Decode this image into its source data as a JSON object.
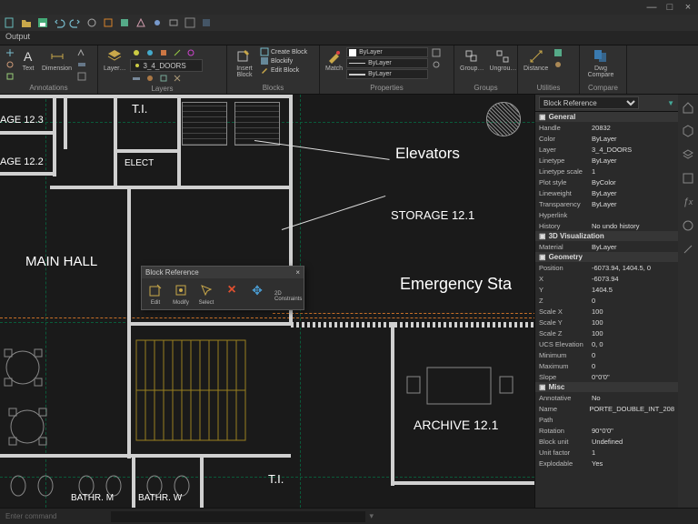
{
  "window": {
    "minimize": "—",
    "maximize": "□",
    "close": "×"
  },
  "output_tab": "Output",
  "ribbon": {
    "annotations": {
      "label": "Annotations",
      "text": "Text",
      "dimension": "Dimension"
    },
    "layers": {
      "label": "Layers",
      "layer_btn": "Layer…",
      "combo": "3_4_DOORS"
    },
    "blocks": {
      "label": "Blocks",
      "insert": "Insert Block",
      "create": "Create Block",
      "blockify": "Blockify",
      "edit": "Edit Block"
    },
    "properties": {
      "label": "Properties",
      "match": "Match",
      "bylayer1": "ByLayer",
      "bylayer2": "ByLayer",
      "bylayer3": "ByLayer"
    },
    "groups": {
      "label": "Groups",
      "group": "Group…",
      "ungroup": "Ungrou…"
    },
    "utilities": {
      "label": "Utilities",
      "distance": "Distance"
    },
    "compare": {
      "label": "Compare",
      "dwg": "Dwg Compare"
    }
  },
  "rooms": {
    "ti1": "T.I.",
    "elect": "ELECT",
    "age123": "AGE 12.3",
    "age122": "AGE 12.2",
    "mainhall": "MAIN HALL",
    "elevators": "Elevators",
    "storage": "STORAGE 12.1",
    "emergency": "Emergency Sta",
    "archive": "ARCHIVE 12.1",
    "bathm": "BATHR. M",
    "bathw": "BATHR. W",
    "ti2": "T.I."
  },
  "context": {
    "title": "Block Reference",
    "edit": "Edit",
    "modify": "Modify",
    "select": "Select",
    "delete_icon": "×",
    "move_icon": "✥",
    "constraints": "2D Constraints"
  },
  "props": {
    "header": "Block Reference",
    "sections": {
      "general": "General",
      "viz": "3D Visualization",
      "geometry": "Geometry",
      "misc": "Misc"
    },
    "general": [
      {
        "k": "Handle",
        "v": "20832"
      },
      {
        "k": "Color",
        "v": "ByLayer"
      },
      {
        "k": "Layer",
        "v": "3_4_DOORS"
      },
      {
        "k": "Linetype",
        "v": "ByLayer"
      },
      {
        "k": "Linetype scale",
        "v": "1"
      },
      {
        "k": "Plot style",
        "v": "ByColor"
      },
      {
        "k": "Lineweight",
        "v": "ByLayer"
      },
      {
        "k": "Transparency",
        "v": "ByLayer"
      },
      {
        "k": "Hyperlink",
        "v": ""
      },
      {
        "k": "History",
        "v": "No undo history"
      }
    ],
    "viz": [
      {
        "k": "Material",
        "v": "ByLayer"
      }
    ],
    "geometry": [
      {
        "k": "Position",
        "v": "-6073.94, 1404.5, 0"
      },
      {
        "k": "   X",
        "v": "-6073.94"
      },
      {
        "k": "   Y",
        "v": "1404.5"
      },
      {
        "k": "   Z",
        "v": "0"
      },
      {
        "k": "Scale X",
        "v": "100"
      },
      {
        "k": "Scale Y",
        "v": "100"
      },
      {
        "k": "Scale Z",
        "v": "100"
      },
      {
        "k": "UCS Elevation",
        "v": "0, 0"
      },
      {
        "k": "   Minimum",
        "v": "0"
      },
      {
        "k": "   Maximum",
        "v": "0"
      },
      {
        "k": "Slope",
        "v": "0°0'0\""
      }
    ],
    "misc": [
      {
        "k": "Annotative",
        "v": "No"
      },
      {
        "k": "Name",
        "v": "PORTE_DOUBLE_INT_208"
      },
      {
        "k": "Path",
        "v": ""
      },
      {
        "k": "Rotation",
        "v": "90°0'0\""
      },
      {
        "k": "Block unit",
        "v": "Undefined"
      },
      {
        "k": "Unit factor",
        "v": "1"
      },
      {
        "k": "Explodable",
        "v": "Yes"
      }
    ]
  },
  "cmd": {
    "prompt": "Enter command"
  },
  "colors": {
    "accent": "#3a9bd4",
    "orange": "#d8822a",
    "wall": "#d0d0d0",
    "stair": "#9a8020"
  }
}
